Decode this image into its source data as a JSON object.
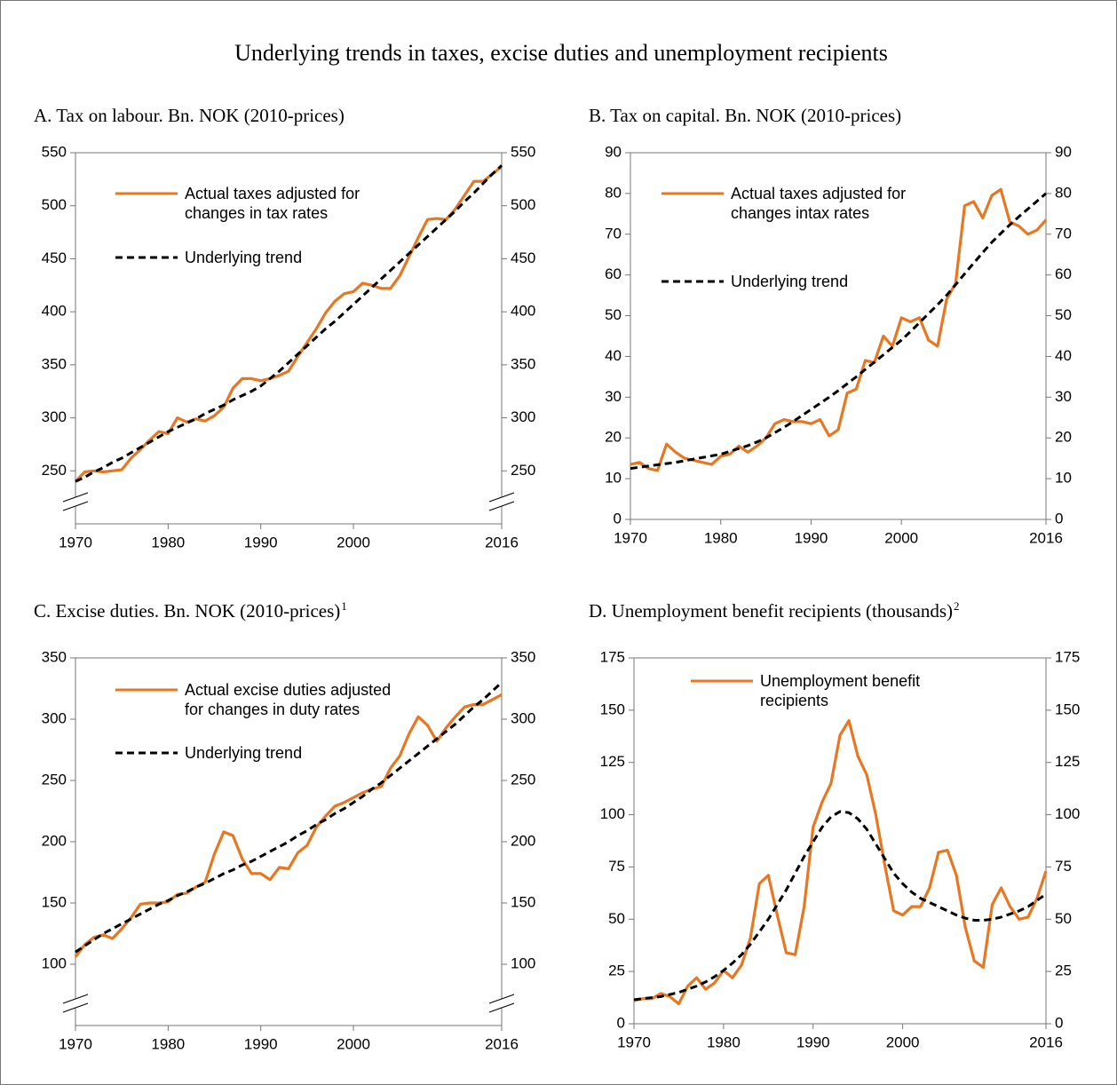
{
  "title": "Underlying trends in taxes, excise duties and unemployment recipients",
  "chart_data": [
    {
      "type": "line",
      "title": "A.  Tax on labour. Bn. NOK (2010-prices)",
      "axis_break": true,
      "x": [
        1970,
        1971,
        1972,
        1973,
        1974,
        1975,
        1976,
        1977,
        1978,
        1979,
        1980,
        1981,
        1982,
        1983,
        1984,
        1985,
        1986,
        1987,
        1988,
        1989,
        1990,
        1991,
        1992,
        1993,
        1994,
        1995,
        1996,
        1997,
        1998,
        1999,
        2000,
        2001,
        2002,
        2003,
        2004,
        2005,
        2006,
        2007,
        2008,
        2009,
        2010,
        2011,
        2012,
        2013,
        2014,
        2015,
        2016
      ],
      "xlim": [
        1970,
        2016
      ],
      "xticks": [
        1970,
        1980,
        1990,
        2000,
        2016
      ],
      "ylim": [
        200,
        550
      ],
      "yticks": [
        250,
        300,
        350,
        400,
        450,
        500,
        550
      ],
      "y2lim": [
        200,
        550
      ],
      "y2ticks": [
        250,
        300,
        350,
        400,
        450,
        500,
        550
      ],
      "series": [
        {
          "name": "Actual taxes adjusted for changes in tax rates",
          "color": "#e87722",
          "dashed": false,
          "values": [
            240,
            249,
            250,
            249,
            250,
            251,
            262,
            270,
            279,
            287,
            285,
            300,
            296,
            299,
            297,
            302,
            310,
            328,
            337,
            337,
            335,
            337,
            340,
            344,
            358,
            371,
            384,
            399,
            410,
            417,
            419,
            427,
            425,
            422,
            422,
            434,
            452,
            470,
            487,
            488,
            487,
            497,
            510,
            523,
            523,
            530,
            537
          ]
        },
        {
          "name": "Underlying trend",
          "color": "#000000",
          "dashed": true,
          "values": [
            240,
            244,
            249,
            253,
            258,
            262,
            267,
            272,
            277,
            282,
            287,
            291,
            295,
            299,
            304,
            308,
            312,
            317,
            321,
            325,
            330,
            337,
            344,
            352,
            360,
            368,
            376,
            384,
            391,
            399,
            407,
            415,
            423,
            431,
            439,
            447,
            455,
            463,
            471,
            479,
            487,
            495,
            504,
            512,
            521,
            530,
            538
          ]
        }
      ]
    },
    {
      "type": "line",
      "title": "B.  Tax on capital. Bn. NOK (2010-prices)",
      "axis_break": false,
      "x": [
        1970,
        1971,
        1972,
        1973,
        1974,
        1975,
        1976,
        1977,
        1978,
        1979,
        1980,
        1981,
        1982,
        1983,
        1984,
        1985,
        1986,
        1987,
        1988,
        1989,
        1990,
        1991,
        1992,
        1993,
        1994,
        1995,
        1996,
        1997,
        1998,
        1999,
        2000,
        2001,
        2002,
        2003,
        2004,
        2005,
        2006,
        2007,
        2008,
        2009,
        2010,
        2011,
        2012,
        2013,
        2014,
        2015,
        2016
      ],
      "xlim": [
        1970,
        2016
      ],
      "xticks": [
        1970,
        1980,
        1990,
        2000,
        2016
      ],
      "ylim": [
        0,
        90
      ],
      "yticks": [
        0,
        10,
        20,
        30,
        40,
        50,
        60,
        70,
        80,
        90
      ],
      "y2lim": [
        0,
        90
      ],
      "y2ticks": [
        0,
        10,
        20,
        30,
        40,
        50,
        60,
        70,
        80,
        90
      ],
      "series": [
        {
          "name": "Actual taxes adjusted for changes intax rates",
          "color": "#e87722",
          "dashed": false,
          "values": [
            13.5,
            14,
            12.5,
            12,
            18.5,
            16.5,
            15,
            14.5,
            14,
            13.5,
            15.5,
            16,
            18,
            16.5,
            18,
            20,
            23.5,
            24.5,
            24,
            24,
            23.5,
            24.5,
            20.5,
            22,
            31,
            32,
            39,
            38.5,
            45,
            42.5,
            49.5,
            48.5,
            49.5,
            44,
            42.5,
            54,
            58,
            77,
            78,
            74,
            79.5,
            81,
            73,
            72,
            70,
            71,
            73.5
          ]
        },
        {
          "name": "Underlying trend",
          "color": "#000000",
          "dashed": true,
          "values": [
            12.5,
            12.8,
            13.1,
            13.4,
            13.7,
            14,
            14.4,
            14.8,
            15.2,
            15.6,
            16,
            16.7,
            17.4,
            18.1,
            19,
            20,
            21.3,
            22.6,
            24,
            25.5,
            27,
            28.5,
            30,
            31.6,
            33.3,
            35,
            36.8,
            38.6,
            40.4,
            42.2,
            44,
            46.1,
            48.3,
            50.5,
            52.7,
            55,
            57.6,
            60.3,
            62.9,
            65.5,
            68,
            70.2,
            72.3,
            74.3,
            76.2,
            78.1,
            80
          ]
        }
      ]
    },
    {
      "type": "line",
      "title": "C.  Excise duties. Bn. NOK (2010-prices)",
      "title_superscript": "1",
      "axis_break": true,
      "x": [
        1970,
        1971,
        1972,
        1973,
        1974,
        1975,
        1976,
        1977,
        1978,
        1979,
        1980,
        1981,
        1982,
        1983,
        1984,
        1985,
        1986,
        1987,
        1988,
        1989,
        1990,
        1991,
        1992,
        1993,
        1994,
        1995,
        1996,
        1997,
        1998,
        1999,
        2000,
        2001,
        2002,
        2003,
        2004,
        2005,
        2006,
        2007,
        2008,
        2009,
        2010,
        2011,
        2012,
        2013,
        2014,
        2015,
        2016
      ],
      "xlim": [
        1970,
        2016
      ],
      "xticks": [
        1970,
        1980,
        1990,
        2000,
        2016
      ],
      "ylim": [
        50,
        350
      ],
      "yticks": [
        100,
        150,
        200,
        250,
        300,
        350
      ],
      "y2lim": [
        50,
        350
      ],
      "y2ticks": [
        100,
        150,
        200,
        250,
        300,
        350
      ],
      "series": [
        {
          "name": "Actual excise duties adjusted for changes in duty rates",
          "color": "#e87722",
          "dashed": false,
          "values": [
            106,
            116,
            122,
            124,
            121,
            129,
            138,
            149,
            150,
            150,
            151,
            157,
            158,
            163,
            167,
            190,
            208,
            205,
            186,
            174,
            174,
            169,
            179,
            178,
            191,
            197,
            212,
            221,
            229,
            232,
            236,
            240,
            243,
            245,
            260,
            270,
            288,
            302,
            295,
            282,
            293,
            302,
            310,
            312,
            312,
            316,
            320
          ]
        },
        {
          "name": "Underlying trend",
          "color": "#000000",
          "dashed": true,
          "values": [
            110,
            115,
            120,
            125,
            129,
            133,
            137,
            141,
            145,
            149,
            152,
            156,
            159,
            163,
            166,
            170,
            174,
            177,
            181,
            184,
            188,
            192,
            196,
            200,
            205,
            209,
            214,
            218,
            223,
            227,
            232,
            237,
            243,
            248,
            254,
            260,
            266,
            272,
            278,
            284,
            290,
            296,
            303,
            310,
            316,
            323,
            330
          ]
        }
      ]
    },
    {
      "type": "line",
      "title": "D.  Unemployment benefit recipients (thousands)",
      "title_superscript": "2",
      "axis_break": false,
      "x": [
        1970,
        1971,
        1972,
        1973,
        1974,
        1975,
        1976,
        1977,
        1978,
        1979,
        1980,
        1981,
        1982,
        1983,
        1984,
        1985,
        1986,
        1987,
        1988,
        1989,
        1990,
        1991,
        1992,
        1993,
        1994,
        1995,
        1996,
        1997,
        1998,
        1999,
        2000,
        2001,
        2002,
        2003,
        2004,
        2005,
        2006,
        2007,
        2008,
        2009,
        2010,
        2011,
        2012,
        2013,
        2014,
        2015,
        2016
      ],
      "xlim": [
        1970,
        2016
      ],
      "xticks": [
        1970,
        1980,
        1990,
        2000,
        2016
      ],
      "ylim": [
        0,
        175
      ],
      "yticks": [
        0,
        25,
        50,
        75,
        100,
        125,
        150,
        175
      ],
      "y2lim": [
        0,
        175
      ],
      "y2ticks": [
        0,
        25,
        50,
        75,
        100,
        125,
        150,
        175
      ],
      "series": [
        {
          "name": "Unemployment benefit recipients",
          "color": "#e87722",
          "dashed": false,
          "values": [
            11,
            12,
            12,
            14.5,
            13,
            9.5,
            18,
            22,
            16.5,
            19.5,
            25.5,
            22,
            28,
            41,
            67,
            71,
            52,
            34,
            33,
            56,
            94,
            106,
            115,
            138,
            145,
            128,
            119,
            100,
            76,
            54,
            52,
            56,
            56,
            65,
            82,
            83,
            71,
            46,
            30,
            27,
            57,
            65,
            56,
            50,
            51,
            60,
            73
          ]
        },
        {
          "name": "Underlying trend",
          "color": "#000000",
          "dashed": true,
          "show_in_legend": false,
          "values": [
            11.5,
            12,
            12.5,
            13,
            14,
            15,
            16.5,
            18,
            20,
            22.5,
            25.5,
            29,
            33,
            38,
            44,
            50,
            57,
            64,
            72,
            80,
            87,
            94,
            99,
            101.5,
            101,
            98,
            93,
            86,
            79,
            72,
            67,
            63,
            60,
            58,
            56,
            54,
            52,
            50.5,
            49.5,
            49.5,
            50,
            51,
            52.5,
            54,
            56,
            59,
            62
          ]
        }
      ]
    }
  ]
}
